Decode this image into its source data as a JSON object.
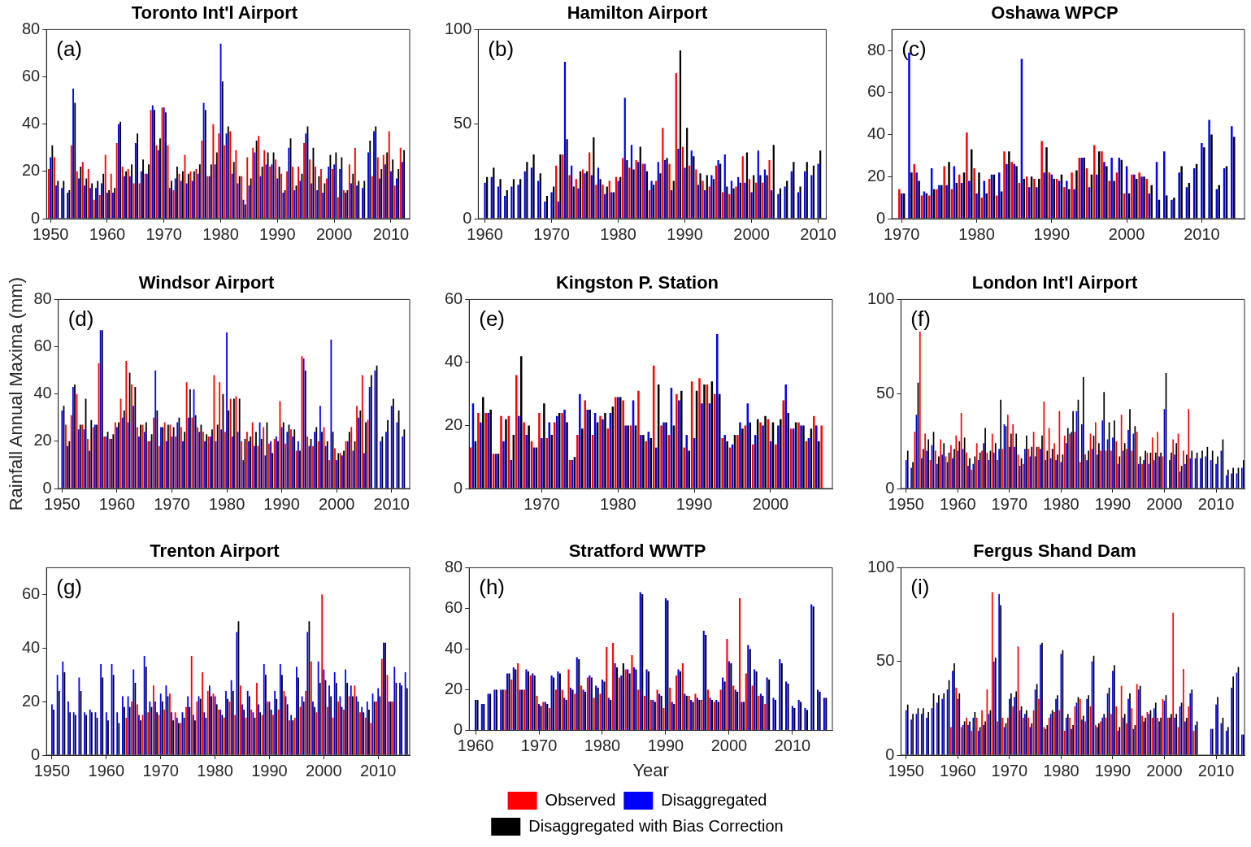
{
  "chart_data": [
    {
      "type": "bar",
      "title": "Toronto Int'l Airport",
      "annotations": [
        "(a)"
      ],
      "x": [
        1950,
        1951,
        1952,
        1953,
        1954,
        1955,
        1956,
        1957,
        1958,
        1959,
        1960,
        1961,
        1962,
        1963,
        1964,
        1965,
        1966,
        1967,
        1968,
        1969,
        1970,
        1971,
        1972,
        1973,
        1974,
        1975,
        1976,
        1977,
        1978,
        1979,
        1980,
        1981,
        1982,
        1983,
        1984,
        1985,
        1986,
        1987,
        1988,
        1989,
        1990,
        1991,
        1992,
        1993,
        1994,
        1995,
        1996,
        1997,
        1998,
        1999,
        2000,
        2001,
        2002,
        2003,
        2004,
        2005,
        2006,
        2007,
        2008,
        2009,
        2010,
        2011,
        2012
      ],
      "xlim": [
        1949.3,
        2013.3
      ],
      "xticks": [
        1950,
        1960,
        1970,
        1980,
        1990,
        2000,
        2010
      ],
      "ylim": [
        0,
        80
      ],
      "yticks": [
        0,
        20,
        40,
        60,
        80
      ],
      "series": [
        {
          "color": "#ff0000",
          "values": [
            21,
            26,
            null,
            null,
            31,
            20,
            24,
            21,
            8,
            10,
            27,
            19,
            32,
            22,
            21,
            15,
            15,
            19,
            46,
            31,
            47,
            31,
            12,
            19,
            27,
            20,
            21,
            33,
            18,
            40,
            36,
            31,
            37,
            29,
            18,
            26,
            30,
            35,
            29,
            22,
            25,
            19,
            20,
            22,
            22,
            32,
            25,
            22,
            21,
            17,
            21,
            9,
            12,
            23,
            30,
            null,
            null,
            18,
            26,
            27,
            37,
            14,
            30
          ]
        },
        {
          "color": "#0000ff",
          "values": [
            26,
            14,
            13,
            11,
            55,
            17,
            14,
            13,
            13,
            15,
            11,
            11,
            40,
            18,
            18,
            32,
            20,
            19,
            48,
            29,
            47,
            13,
            17,
            16,
            15,
            16,
            19,
            49,
            18,
            23,
            74,
            36,
            19,
            15,
            8,
            14,
            28,
            18,
            23,
            23,
            17,
            11,
            30,
            12,
            16,
            36,
            15,
            12,
            11,
            22,
            23,
            21,
            11,
            15,
            14,
            13,
            28,
            37,
            17,
            23,
            20,
            17,
            24
          ]
        },
        {
          "color": "#000000",
          "values": [
            31,
            16,
            16,
            12,
            49,
            22,
            17,
            15,
            16,
            19,
            12,
            13,
            41,
            20,
            23,
            36,
            25,
            23,
            46,
            34,
            45,
            16,
            22,
            20,
            19,
            20,
            23,
            46,
            23,
            28,
            58,
            39,
            24,
            18,
            6,
            17,
            33,
            22,
            28,
            28,
            22,
            12,
            34,
            14,
            19,
            39,
            30,
            18,
            15,
            27,
            28,
            26,
            12,
            19,
            16,
            16,
            33,
            39,
            21,
            28,
            25,
            21,
            29
          ]
        }
      ]
    },
    {
      "type": "bar",
      "title": "Hamilton Airport",
      "annotations": [
        "(b)"
      ],
      "x": [
        1960,
        1961,
        1962,
        1963,
        1964,
        1965,
        1966,
        1967,
        1968,
        1969,
        1970,
        1971,
        1972,
        1973,
        1974,
        1975,
        1976,
        1977,
        1978,
        1979,
        1980,
        1981,
        1982,
        1983,
        1984,
        1985,
        1986,
        1987,
        1988,
        1989,
        1990,
        1991,
        1992,
        1993,
        1994,
        1995,
        1996,
        1997,
        1998,
        1999,
        2000,
        2001,
        2002,
        2003,
        2004,
        2005,
        2006,
        2007,
        2008,
        2009,
        2010
      ],
      "xlim": [
        1959,
        2011.2
      ],
      "xticks": [
        1960,
        1970,
        1980,
        1990,
        2000,
        2010
      ],
      "ylim": [
        0,
        100
      ],
      "yticks": [
        0,
        50,
        100
      ],
      "series": [
        {
          "color": "#ff0000",
          "values": [
            null,
            null,
            null,
            null,
            null,
            null,
            null,
            null,
            null,
            null,
            null,
            28,
            34,
            23,
            21,
            26,
            35,
            18,
            18,
            20,
            22,
            32,
            27,
            31,
            29,
            15,
            20,
            48,
            29,
            77,
            38,
            28,
            26,
            20,
            17,
            28,
            14,
            13,
            17,
            33,
            21,
            19,
            19,
            31,
            null,
            null,
            null,
            null,
            null,
            null,
            null
          ]
        },
        {
          "color": "#0000ff",
          "values": [
            19,
            22,
            17,
            12,
            17,
            18,
            25,
            27,
            20,
            9,
            14,
            9,
            83,
            28,
            16,
            24,
            23,
            27,
            13,
            14,
            20,
            64,
            39,
            30,
            29,
            20,
            30,
            31,
            15,
            37,
            27,
            36,
            18,
            15,
            23,
            31,
            34,
            20,
            22,
            19,
            14,
            36,
            26,
            15,
            13,
            17,
            25,
            14,
            25,
            23,
            29
          ]
        },
        {
          "color": "#000000",
          "values": [
            22,
            27,
            21,
            15,
            21,
            21,
            30,
            34,
            24,
            12,
            17,
            34,
            42,
            17,
            25,
            25,
            43,
            21,
            17,
            14,
            22,
            31,
            26,
            38,
            25,
            18,
            24,
            32,
            20,
            89,
            48,
            33,
            24,
            23,
            21,
            29,
            17,
            16,
            19,
            35,
            23,
            23,
            23,
            39,
            16,
            20,
            30,
            17,
            30,
            28,
            36
          ]
        }
      ]
    },
    {
      "type": "bar",
      "title": "Oshawa WPCP",
      "annotations": [
        "(c)"
      ],
      "x": [
        1970,
        1971,
        1972,
        1973,
        1974,
        1975,
        1976,
        1977,
        1978,
        1979,
        1980,
        1981,
        1982,
        1983,
        1984,
        1985,
        1986,
        1987,
        1988,
        1989,
        1990,
        1991,
        1992,
        1993,
        1994,
        1995,
        1996,
        1997,
        1998,
        1999,
        2000,
        2001,
        2002,
        2003,
        2004,
        2005,
        2006,
        2007,
        2008,
        2009,
        2010,
        2011,
        2012,
        2013,
        2014
      ],
      "xlim": [
        1968.7,
        2015.7
      ],
      "xticks": [
        1970,
        1980,
        1990,
        2000,
        2010
      ],
      "ylim": [
        0,
        90
      ],
      "yticks": [
        0,
        20,
        40,
        60,
        80
      ],
      "series": [
        {
          "color": "#ff0000",
          "values": [
            14,
            null,
            26,
            11,
            11,
            14,
            25,
            14,
            21,
            41,
            24,
            10,
            19,
            11,
            32,
            27,
            17,
            20,
            19,
            37,
            22,
            19,
            15,
            22,
            29,
            24,
            35,
            32,
            18,
            22,
            12,
            21,
            22,
            19,
            null,
            null,
            null,
            null,
            null,
            null,
            null,
            null,
            null,
            null,
            null
          ]
        },
        {
          "color": "#0000ff",
          "values": [
            12,
            79,
            22,
            13,
            24,
            16,
            16,
            25,
            17,
            18,
            12,
            18,
            21,
            22,
            26,
            26,
            76,
            15,
            15,
            22,
            21,
            18,
            18,
            14,
            29,
            15,
            21,
            27,
            29,
            29,
            25,
            21,
            20,
            12,
            27,
            32,
            9,
            22,
            15,
            24,
            36,
            47,
            14,
            24,
            44
          ]
        },
        {
          "color": "#000000",
          "values": [
            12,
            22,
            18,
            12,
            14,
            16,
            27,
            17,
            22,
            33,
            22,
            12,
            21,
            13,
            32,
            25,
            19,
            20,
            19,
            34,
            19,
            21,
            14,
            23,
            29,
            21,
            32,
            25,
            18,
            28,
            12,
            19,
            20,
            16,
            9,
            11,
            10,
            25,
            17,
            26,
            34,
            40,
            16,
            25,
            39
          ]
        }
      ]
    },
    {
      "type": "bar",
      "title": "Windsor Airport",
      "ylabel": "Rainfall Annual Maxima (mm)",
      "annotations": [
        "(d)"
      ],
      "x": [
        1950,
        1951,
        1952,
        1953,
        1954,
        1955,
        1956,
        1957,
        1958,
        1959,
        1960,
        1961,
        1962,
        1963,
        1964,
        1965,
        1966,
        1967,
        1968,
        1969,
        1970,
        1971,
        1972,
        1973,
        1974,
        1975,
        1976,
        1977,
        1978,
        1979,
        1980,
        1981,
        1982,
        1983,
        1984,
        1985,
        1986,
        1987,
        1988,
        1989,
        1990,
        1991,
        1992,
        1993,
        1994,
        1995,
        1996,
        1997,
        1998,
        1999,
        2000,
        2001,
        2002,
        2003,
        2004,
        2005,
        2006,
        2007,
        2008,
        2009,
        2010,
        2011,
        2012
      ],
      "xlim": [
        1949.3,
        2013.3
      ],
      "xticks": [
        1950,
        1960,
        1970,
        1980,
        1990,
        2000,
        2010
      ],
      "ylim": [
        0,
        80
      ],
      "yticks": [
        0,
        20,
        40,
        60,
        80
      ],
      "series": [
        {
          "color": "#ff0000",
          "values": [
            null,
            27,
            31,
            40,
            27,
            21,
            26,
            53,
            22,
            21,
            28,
            38,
            54,
            44,
            26,
            27,
            20,
            30,
            18,
            28,
            27,
            22,
            26,
            45,
            30,
            26,
            24,
            22,
            48,
            45,
            24,
            38,
            39,
            20,
            24,
            28,
            18,
            26,
            19,
            21,
            37,
            19,
            25,
            16,
            56,
            22,
            18,
            20,
            26,
            12,
            17,
            15,
            20,
            26,
            35,
            48,
            29,
            null,
            null,
            null,
            null,
            null,
            null
          ]
        },
        {
          "color": "#0000ff",
          "values": [
            33,
            18,
            43,
            25,
            25,
            16,
            27,
            67,
            22,
            21,
            26,
            30,
            28,
            35,
            22,
            24,
            20,
            50,
            26,
            20,
            22,
            28,
            20,
            30,
            42,
            24,
            20,
            22,
            20,
            25,
            66,
            22,
            24,
            12,
            20,
            18,
            28,
            14,
            20,
            22,
            26,
            24,
            22,
            20,
            55,
            18,
            24,
            35,
            18,
            63,
            12,
            14,
            20,
            16,
            30,
            15,
            43,
            50,
            20,
            24,
            35,
            28,
            22
          ]
        },
        {
          "color": "#000000",
          "values": [
            35,
            20,
            44,
            27,
            38,
            29,
            27,
            67,
            24,
            23,
            28,
            33,
            49,
            43,
            27,
            28,
            23,
            33,
            26,
            27,
            26,
            30,
            24,
            42,
            31,
            27,
            23,
            25,
            27,
            40,
            33,
            38,
            38,
            21,
            22,
            24,
            21,
            28,
            15,
            20,
            28,
            27,
            25,
            16,
            50,
            21,
            26,
            24,
            20,
            24,
            15,
            16,
            24,
            20,
            33,
            28,
            48,
            52,
            22,
            29,
            38,
            33,
            25
          ]
        }
      ]
    },
    {
      "type": "bar",
      "title": "Kingston P. Station",
      "annotations": [
        "(e)"
      ],
      "x": [
        1961,
        1962,
        1963,
        1964,
        1965,
        1966,
        1967,
        1968,
        1969,
        1970,
        1971,
        1972,
        1973,
        1974,
        1975,
        1976,
        1977,
        1978,
        1979,
        1980,
        1981,
        1982,
        1983,
        1984,
        1985,
        1986,
        1987,
        1988,
        1989,
        1990,
        1991,
        1992,
        1993,
        1994,
        1995,
        1996,
        1997,
        1998,
        1999,
        2000,
        2001,
        2002,
        2003,
        2004,
        2005,
        2006,
        2007
      ],
      "xlim": [
        1960.5,
        2008.1
      ],
      "xticks": [
        1970,
        1980,
        1990,
        2000
      ],
      "ylim": [
        0,
        60
      ],
      "yticks": [
        0,
        20,
        40,
        60
      ],
      "series": [
        {
          "color": "#ff0000",
          "values": [
            13,
            24,
            24,
            11,
            23,
            23,
            36,
            21,
            15,
            24,
            16,
            21,
            24,
            9,
            17,
            28,
            17,
            23,
            19,
            29,
            28,
            20,
            31,
            15,
            39,
            20,
            17,
            30,
            13,
            34,
            35,
            33,
            30,
            16,
            13,
            17,
            20,
            14,
            21,
            22,
            14,
            28,
            19,
            21,
            15,
            23,
            20
          ]
        },
        {
          "color": "#0000ff",
          "values": [
            27,
            21,
            24,
            11,
            15,
            9,
            23,
            17,
            13,
            16,
            21,
            23,
            25,
            9,
            30,
            25,
            24,
            22,
            24,
            29,
            20,
            28,
            17,
            18,
            13,
            21,
            32,
            28,
            17,
            16,
            27,
            27,
            49,
            17,
            14,
            21,
            27,
            17,
            20,
            15,
            20,
            33,
            19,
            20,
            16,
            20,
            null
          ]
        },
        {
          "color": "#000000",
          "values": [
            15,
            29,
            25,
            11,
            22,
            17,
            42,
            20,
            13,
            27,
            17,
            24,
            21,
            10,
            19,
            25,
            21,
            24,
            26,
            29,
            20,
            20,
            17,
            16,
            33,
            21,
            20,
            31,
            12,
            31,
            33,
            34,
            30,
            15,
            17,
            19,
            21,
            22,
            23,
            21,
            22,
            24,
            21,
            20,
            19,
            15,
            null
          ]
        }
      ]
    },
    {
      "type": "bar",
      "title": "London Int'l Airport",
      "annotations": [
        "(f)"
      ],
      "x": [
        1950,
        1951,
        1952,
        1953,
        1954,
        1955,
        1956,
        1957,
        1958,
        1959,
        1960,
        1961,
        1962,
        1963,
        1964,
        1965,
        1966,
        1967,
        1968,
        1969,
        1970,
        1971,
        1972,
        1973,
        1974,
        1975,
        1976,
        1977,
        1978,
        1979,
        1980,
        1981,
        1982,
        1983,
        1984,
        1985,
        1986,
        1987,
        1988,
        1989,
        1990,
        1991,
        1992,
        1993,
        1994,
        1995,
        1996,
        1997,
        1998,
        1999,
        2000,
        2001,
        2002,
        2003,
        2004,
        2005,
        2006,
        2007,
        2008,
        2009,
        2010,
        2011,
        2012,
        2013,
        2014,
        2015
      ],
      "xlim": [
        1949,
        2015.5
      ],
      "xticks": [
        1950,
        1960,
        1970,
        1980,
        1990,
        2000,
        2010
      ],
      "ylim": [
        0,
        100
      ],
      "yticks": [
        0,
        50,
        100
      ],
      "series": [
        {
          "color": "#ff0000",
          "values": [
            null,
            null,
            30,
            83,
            29,
            15,
            20,
            26,
            17,
            23,
            28,
            40,
            19,
            10,
            24,
            20,
            19,
            29,
            15,
            21,
            39,
            34,
            18,
            13,
            21,
            30,
            22,
            46,
            32,
            24,
            41,
            28,
            29,
            30,
            14,
            18,
            29,
            35,
            20,
            20,
            20,
            25,
            39,
            21,
            20,
            30,
            13,
            19,
            27,
            30,
            17,
            null,
            26,
            29,
            20,
            42,
            null,
            null,
            null,
            null,
            null,
            null,
            null,
            null,
            null,
            null
          ]
        },
        {
          "color": "#0000ff",
          "values": [
            15,
            11,
            39,
            16,
            20,
            23,
            13,
            18,
            14,
            16,
            20,
            21,
            12,
            13,
            15,
            24,
            15,
            19,
            21,
            34,
            22,
            22,
            12,
            21,
            17,
            17,
            21,
            15,
            16,
            15,
            14,
            24,
            30,
            41,
            34,
            15,
            21,
            18,
            36,
            26,
            27,
            13,
            20,
            31,
            29,
            13,
            15,
            13,
            15,
            17,
            42,
            15,
            18,
            9,
            13,
            16,
            16,
            16,
            17,
            15,
            13,
            20,
            7,
            8,
            8,
            11
          ]
        },
        {
          "color": "#000000",
          "values": [
            20,
            14,
            56,
            21,
            26,
            30,
            17,
            24,
            19,
            21,
            25,
            27,
            16,
            17,
            19,
            32,
            20,
            24,
            47,
            33,
            29,
            29,
            16,
            28,
            22,
            22,
            28,
            20,
            21,
            18,
            18,
            32,
            41,
            47,
            59,
            20,
            28,
            24,
            51,
            35,
            36,
            17,
            24,
            42,
            33,
            17,
            20,
            19,
            19,
            19,
            61,
            19,
            24,
            12,
            18,
            20,
            19,
            20,
            22,
            20,
            17,
            26,
            10,
            11,
            11,
            15
          ]
        }
      ]
    },
    {
      "type": "bar",
      "title": "Trenton Airport",
      "annotations": [
        "(g)"
      ],
      "x": [
        1950,
        1951,
        1952,
        1953,
        1954,
        1955,
        1956,
        1957,
        1958,
        1959,
        1960,
        1961,
        1962,
        1963,
        1964,
        1965,
        1966,
        1967,
        1968,
        1969,
        1970,
        1971,
        1972,
        1973,
        1974,
        1975,
        1976,
        1977,
        1978,
        1979,
        1980,
        1981,
        1982,
        1983,
        1984,
        1985,
        1986,
        1987,
        1988,
        1989,
        1990,
        1991,
        1992,
        1993,
        1994,
        1995,
        1996,
        1997,
        1998,
        1999,
        2000,
        2001,
        2002,
        2003,
        2004,
        2005,
        2006,
        2007,
        2008,
        2009,
        2010,
        2011,
        2012,
        2013,
        2014,
        2015
      ],
      "xlim": [
        1949,
        2015.8
      ],
      "xticks": [
        1950,
        1960,
        1970,
        1980,
        1990,
        2000,
        2010
      ],
      "ylim": [
        0,
        70
      ],
      "yticks": [
        0,
        20,
        40,
        60
      ],
      "series": [
        {
          "color": "#ff0000",
          "values": [
            null,
            null,
            null,
            null,
            null,
            null,
            null,
            null,
            null,
            null,
            null,
            null,
            null,
            null,
            14,
            20,
            19,
            15,
            16,
            26,
            15,
            17,
            23,
            16,
            12,
            18,
            37,
            20,
            31,
            24,
            23,
            17,
            14,
            20,
            15,
            26,
            14,
            17,
            27,
            15,
            20,
            15,
            17,
            24,
            13,
            14,
            18,
            24,
            35,
            16,
            60,
            18,
            14,
            20,
            17,
            22,
            26,
            16,
            14,
            12,
            20,
            36,
            30,
            20,
            null,
            null
          ]
        },
        {
          "color": "#0000ff",
          "values": [
            19,
            30,
            35,
            20,
            16,
            29,
            16,
            17,
            16,
            34,
            16,
            34,
            16,
            22,
            22,
            32,
            15,
            37,
            20,
            20,
            23,
            26,
            16,
            14,
            16,
            22,
            15,
            22,
            16,
            26,
            22,
            17,
            24,
            28,
            46,
            19,
            24,
            16,
            19,
            34,
            20,
            24,
            34,
            22,
            15,
            33,
            22,
            46,
            20,
            35,
            32,
            26,
            31,
            22,
            32,
            26,
            22,
            18,
            20,
            23,
            25,
            42,
            20,
            33,
            27,
            31
          ]
        },
        {
          "color": "#000000",
          "values": [
            17,
            24,
            31,
            16,
            15,
            24,
            15,
            16,
            14,
            29,
            13,
            30,
            12,
            18,
            18,
            27,
            13,
            33,
            18,
            16,
            20,
            22,
            13,
            12,
            14,
            18,
            13,
            21,
            14,
            22,
            19,
            15,
            21,
            24,
            50,
            17,
            22,
            14,
            16,
            30,
            17,
            21,
            30,
            19,
            13,
            29,
            20,
            50,
            18,
            27,
            28,
            22,
            27,
            18,
            27,
            22,
            20,
            16,
            17,
            20,
            22,
            42,
            20,
            27,
            26,
            25
          ]
        }
      ]
    },
    {
      "type": "bar",
      "title": "Stratford WWTP",
      "xlabel": "Year",
      "legend": "bottom",
      "annotations": [
        "(h)"
      ],
      "x": [
        1960,
        1961,
        1962,
        1963,
        1964,
        1965,
        1966,
        1967,
        1968,
        1969,
        1970,
        1971,
        1972,
        1973,
        1974,
        1975,
        1976,
        1977,
        1978,
        1979,
        1980,
        1981,
        1982,
        1983,
        1984,
        1985,
        1986,
        1987,
        1988,
        1989,
        1990,
        1991,
        1992,
        1993,
        1994,
        1995,
        1996,
        1997,
        1998,
        1999,
        2000,
        2001,
        2002,
        2003,
        2004,
        2005,
        2006,
        2007,
        2008,
        2009,
        2010,
        2011,
        2012,
        2013,
        2014,
        2015
      ],
      "xlim": [
        1959,
        2016.3
      ],
      "xticks": [
        1960,
        1970,
        1980,
        1990,
        2000,
        2010
      ],
      "ylim": [
        0,
        80
      ],
      "yticks": [
        0,
        20,
        40,
        60,
        80
      ],
      "series": [
        {
          "name": "Observed",
          "color": "#ff0000",
          "values": [
            null,
            null,
            null,
            null,
            null,
            20,
            25,
            33,
            20,
            27,
            17,
            14,
            11,
            20,
            20,
            30,
            18,
            22,
            26,
            16,
            18,
            41,
            43,
            26,
            30,
            37,
            20,
            17,
            15,
            20,
            11,
            21,
            27,
            33,
            17,
            18,
            15,
            20,
            14,
            20,
            45,
            22,
            65,
            28,
            22,
            17,
            13,
            null,
            null,
            null,
            null,
            null,
            null,
            null,
            null,
            null
          ]
        },
        {
          "name": "Disaggregated",
          "color": "#0000ff",
          "values": [
            15,
            13,
            18,
            20,
            20,
            28,
            31,
            20,
            30,
            28,
            13,
            14,
            27,
            29,
            16,
            21,
            36,
            20,
            27,
            22,
            25,
            16,
            33,
            27,
            30,
            31,
            68,
            30,
            15,
            18,
            65,
            14,
            30,
            18,
            15,
            16,
            49,
            16,
            15,
            26,
            34,
            20,
            14,
            42,
            30,
            18,
            26,
            16,
            35,
            24,
            12,
            15,
            11,
            62,
            20,
            16
          ]
        },
        {
          "name": "Disaggregated with Bias Correction",
          "color": "#000000",
          "values": [
            15,
            13,
            18,
            20,
            20,
            28,
            30,
            20,
            29,
            27,
            12,
            13,
            26,
            28,
            15,
            20,
            35,
            19,
            26,
            21,
            24,
            15,
            31,
            33,
            28,
            30,
            67,
            29,
            14,
            17,
            64,
            13,
            29,
            17,
            14,
            15,
            47,
            15,
            14,
            24,
            33,
            19,
            14,
            40,
            29,
            17,
            25,
            15,
            33,
            23,
            11,
            14,
            10,
            61,
            19,
            16
          ]
        }
      ]
    },
    {
      "type": "bar",
      "title": "Fergus Shand Dam",
      "annotations": [
        "(i)"
      ],
      "x": [
        1950,
        1951,
        1952,
        1953,
        1954,
        1955,
        1956,
        1957,
        1958,
        1959,
        1960,
        1961,
        1962,
        1963,
        1964,
        1965,
        1966,
        1967,
        1968,
        1969,
        1970,
        1971,
        1972,
        1973,
        1974,
        1975,
        1976,
        1977,
        1978,
        1979,
        1980,
        1981,
        1982,
        1983,
        1984,
        1985,
        1986,
        1987,
        1988,
        1989,
        1990,
        1991,
        1992,
        1993,
        1994,
        1995,
        1996,
        1997,
        1998,
        1999,
        2000,
        2001,
        2002,
        2003,
        2004,
        2005,
        2006,
        2007,
        2008,
        2009,
        2010,
        2011,
        2012,
        2013,
        2014,
        2015
      ],
      "xlim": [
        1949,
        2015.5
      ],
      "xticks": [
        1950,
        1960,
        1970,
        1980,
        1990,
        2000,
        2010
      ],
      "ylim": [
        0,
        100
      ],
      "yticks": [
        0,
        50,
        100
      ],
      "series": [
        {
          "color": "#ff0000",
          "values": [
            null,
            null,
            null,
            null,
            null,
            null,
            null,
            null,
            null,
            15,
            36,
            15,
            20,
            13,
            20,
            24,
            35,
            87,
            18,
            20,
            20,
            26,
            58,
            20,
            20,
            24,
            30,
            15,
            20,
            23,
            24,
            13,
            20,
            26,
            30,
            18,
            26,
            16,
            18,
            20,
            22,
            26,
            37,
            17,
            25,
            38,
            21,
            23,
            20,
            20,
            30,
            20,
            76,
            15,
            46,
            26,
            13,
            null,
            null,
            null,
            null,
            null,
            null,
            null,
            null,
            null
          ]
        },
        {
          "color": "#0000ff",
          "values": [
            24,
            19,
            22,
            22,
            20,
            25,
            28,
            30,
            35,
            45,
            30,
            16,
            16,
            20,
            13,
            16,
            22,
            50,
            86,
            15,
            30,
            31,
            24,
            22,
            15,
            35,
            59,
            14,
            22,
            30,
            54,
            20,
            14,
            28,
            19,
            30,
            50,
            15,
            20,
            33,
            45,
            13,
            20,
            30,
            14,
            35,
            18,
            22,
            25,
            18,
            29,
            20,
            20,
            26,
            18,
            33,
            16,
            null,
            null,
            14,
            27,
            17,
            13,
            36,
            44,
            11
          ]
        },
        {
          "color": "#000000",
          "values": [
            27,
            22,
            25,
            25,
            23,
            33,
            32,
            33,
            40,
            49,
            33,
            18,
            18,
            23,
            15,
            18,
            24,
            52,
            80,
            17,
            33,
            34,
            26,
            24,
            17,
            38,
            60,
            16,
            24,
            32,
            56,
            22,
            16,
            31,
            21,
            32,
            53,
            17,
            22,
            36,
            48,
            15,
            22,
            33,
            16,
            37,
            20,
            24,
            28,
            20,
            32,
            22,
            22,
            28,
            20,
            35,
            18,
            null,
            null,
            14,
            31,
            20,
            15,
            42,
            47,
            11
          ]
        }
      ]
    }
  ]
}
